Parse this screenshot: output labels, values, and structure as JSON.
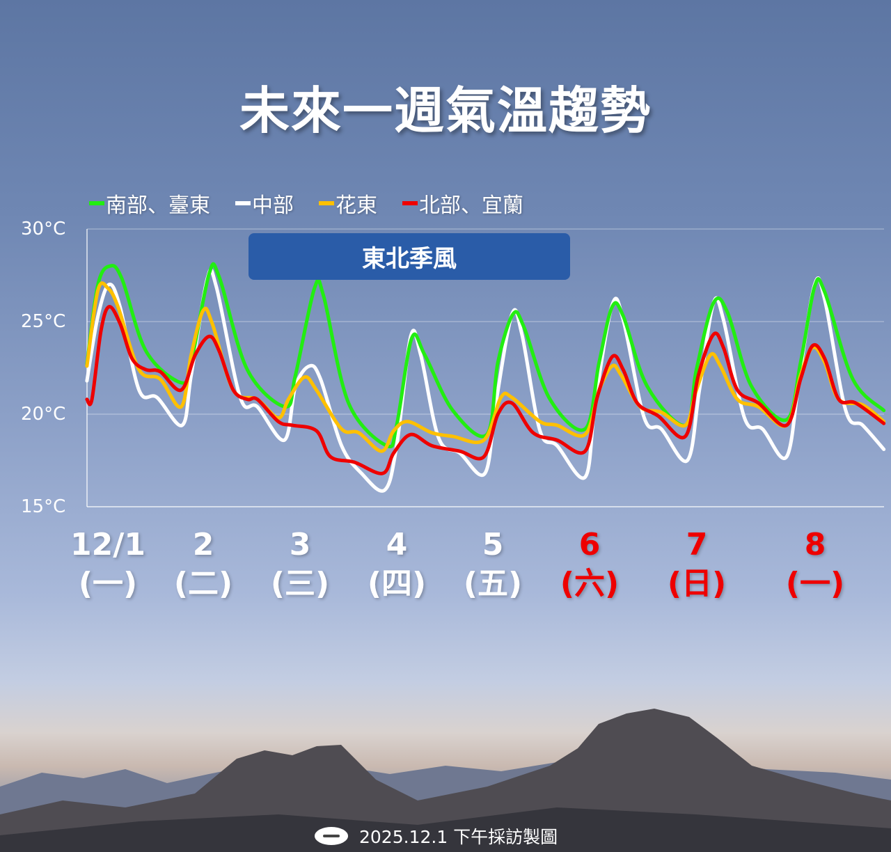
{
  "title": "未來一週氣溫趨勢",
  "annotation": "東北季風",
  "footer": {
    "text": "2025.12.1 下午採訪製圖",
    "logo_icon": "cwa-logo"
  },
  "colors": {
    "south": "#22ee11",
    "central": "#ffffff",
    "hualien": "#ffc000",
    "north": "#ee0000",
    "weekend_label": "#ee0000",
    "annotation_bg": "#2a5ca8"
  },
  "chart_data": {
    "type": "line",
    "title": "未來一週氣溫趨勢",
    "ylim": [
      15,
      30
    ],
    "yticks": [
      {
        "v": 30,
        "label": "30°C"
      },
      {
        "v": 25,
        "label": "25°C"
      },
      {
        "v": 20,
        "label": "20°C"
      },
      {
        "v": 15,
        "label": "15°C"
      }
    ],
    "grid": true,
    "legend_placement": "top",
    "xticks": [
      {
        "date": "12/1",
        "weekday": "(一)",
        "weekend": false
      },
      {
        "date": "2",
        "weekday": "(二)",
        "weekend": false
      },
      {
        "date": "3",
        "weekday": "(三)",
        "weekend": false
      },
      {
        "date": "4",
        "weekday": "(四)",
        "weekend": false
      },
      {
        "date": "5",
        "weekday": "(五)",
        "weekend": false
      },
      {
        "date": "6",
        "weekday": "(六)",
        "weekend": true
      },
      {
        "date": "7",
        "weekday": "(日)",
        "weekend": true
      },
      {
        "date": "8",
        "weekday": "(一)",
        "weekend": true
      }
    ],
    "series": [
      {
        "name": "南部、臺東",
        "color": "#22ee11",
        "points": [
          [
            1.35,
            22.7
          ],
          [
            1.46,
            27.0
          ],
          [
            1.58,
            28.0
          ],
          [
            1.7,
            27.3
          ],
          [
            1.94,
            23.4
          ],
          [
            2.29,
            21.7
          ],
          [
            2.39,
            22.8
          ],
          [
            2.57,
            27.6
          ],
          [
            2.67,
            27.4
          ],
          [
            2.95,
            22.4
          ],
          [
            3.33,
            20.4
          ],
          [
            3.43,
            22.1
          ],
          [
            3.62,
            26.8
          ],
          [
            3.71,
            26.4
          ],
          [
            3.96,
            20.6
          ],
          [
            4.34,
            18.3
          ],
          [
            4.44,
            19.4
          ],
          [
            4.59,
            24.1
          ],
          [
            4.72,
            23.2
          ],
          [
            5.0,
            20.2
          ],
          [
            5.34,
            18.9
          ],
          [
            5.45,
            22.8
          ],
          [
            5.6,
            25.4
          ],
          [
            5.71,
            24.7
          ],
          [
            5.97,
            20.8
          ],
          [
            6.32,
            19.2
          ],
          [
            6.46,
            22.8
          ],
          [
            6.59,
            25.8
          ],
          [
            6.7,
            25.3
          ],
          [
            6.94,
            21.5
          ],
          [
            7.32,
            19.4
          ],
          [
            7.43,
            22.4
          ],
          [
            7.6,
            26.0
          ],
          [
            7.74,
            25.5
          ],
          [
            7.98,
            21.5
          ],
          [
            8.33,
            19.7
          ],
          [
            8.47,
            22.8
          ],
          [
            8.61,
            26.9
          ],
          [
            8.71,
            26.6
          ],
          [
            8.99,
            21.9
          ],
          [
            9.3,
            20.2
          ]
        ]
      },
      {
        "name": "中部",
        "color": "#ffffff",
        "points": [
          [
            1.35,
            21.8
          ],
          [
            1.46,
            25.3
          ],
          [
            1.57,
            27.0
          ],
          [
            1.68,
            25.8
          ],
          [
            1.87,
            21.3
          ],
          [
            2.05,
            20.9
          ],
          [
            2.3,
            19.4
          ],
          [
            2.39,
            22.1
          ],
          [
            2.55,
            27.3
          ],
          [
            2.64,
            26.9
          ],
          [
            2.88,
            20.9
          ],
          [
            3.05,
            20.4
          ],
          [
            3.32,
            18.6
          ],
          [
            3.43,
            21.5
          ],
          [
            3.57,
            22.6
          ],
          [
            3.68,
            21.9
          ],
          [
            3.89,
            18.3
          ],
          [
            4.09,
            16.8
          ],
          [
            4.32,
            15.9
          ],
          [
            4.44,
            18.3
          ],
          [
            4.58,
            24.2
          ],
          [
            4.68,
            23.2
          ],
          [
            4.86,
            18.7
          ],
          [
            5.07,
            17.9
          ],
          [
            5.32,
            16.8
          ],
          [
            5.43,
            20.6
          ],
          [
            5.59,
            25.4
          ],
          [
            5.69,
            24.3
          ],
          [
            5.87,
            19.1
          ],
          [
            6.04,
            18.3
          ],
          [
            6.32,
            16.6
          ],
          [
            6.42,
            20.6
          ],
          [
            6.59,
            25.9
          ],
          [
            6.7,
            25.1
          ],
          [
            6.91,
            19.8
          ],
          [
            7.08,
            19.2
          ],
          [
            7.34,
            17.5
          ],
          [
            7.46,
            21.3
          ],
          [
            7.6,
            26.0
          ],
          [
            7.7,
            25.1
          ],
          [
            7.91,
            19.8
          ],
          [
            8.09,
            19.2
          ],
          [
            8.33,
            17.7
          ],
          [
            8.46,
            22.1
          ],
          [
            8.61,
            27.0
          ],
          [
            8.71,
            26.2
          ],
          [
            8.92,
            20.2
          ],
          [
            9.09,
            19.4
          ],
          [
            9.3,
            18.1
          ]
        ]
      },
      {
        "name": "花東",
        "color": "#ffc000",
        "points": [
          [
            1.35,
            22.6
          ],
          [
            1.46,
            26.7
          ],
          [
            1.56,
            26.8
          ],
          [
            1.66,
            25.8
          ],
          [
            1.87,
            22.4
          ],
          [
            2.08,
            21.9
          ],
          [
            2.29,
            20.4
          ],
          [
            2.39,
            23.2
          ],
          [
            2.51,
            25.6
          ],
          [
            2.6,
            24.9
          ],
          [
            2.81,
            21.3
          ],
          [
            3.05,
            20.8
          ],
          [
            3.26,
            19.8
          ],
          [
            3.36,
            20.8
          ],
          [
            3.52,
            22.0
          ],
          [
            3.64,
            21.3
          ],
          [
            3.89,
            19.2
          ],
          [
            4.06,
            19.0
          ],
          [
            4.29,
            18.0
          ],
          [
            4.41,
            19.1
          ],
          [
            4.55,
            19.6
          ],
          [
            4.79,
            19.0
          ],
          [
            5.0,
            18.8
          ],
          [
            5.31,
            18.6
          ],
          [
            5.48,
            20.9
          ],
          [
            5.59,
            20.9
          ],
          [
            5.87,
            19.6
          ],
          [
            6.04,
            19.4
          ],
          [
            6.32,
            18.9
          ],
          [
            6.46,
            21.3
          ],
          [
            6.59,
            22.6
          ],
          [
            6.68,
            22.1
          ],
          [
            6.87,
            20.4
          ],
          [
            7.08,
            20.1
          ],
          [
            7.32,
            19.4
          ],
          [
            7.43,
            21.3
          ],
          [
            7.57,
            23.2
          ],
          [
            7.67,
            22.6
          ],
          [
            7.84,
            20.8
          ],
          [
            8.05,
            20.4
          ],
          [
            8.33,
            19.4
          ],
          [
            8.47,
            22.1
          ],
          [
            8.59,
            23.6
          ],
          [
            8.71,
            22.8
          ],
          [
            8.85,
            20.8
          ],
          [
            9.09,
            20.5
          ],
          [
            9.3,
            19.6
          ]
        ]
      },
      {
        "name": "北部、宜蘭",
        "color": "#ee0000",
        "points": [
          [
            1.35,
            20.8
          ],
          [
            1.4,
            20.8
          ],
          [
            1.49,
            24.5
          ],
          [
            1.57,
            25.8
          ],
          [
            1.68,
            24.9
          ],
          [
            1.8,
            23.0
          ],
          [
            1.94,
            22.4
          ],
          [
            2.08,
            22.3
          ],
          [
            2.29,
            21.3
          ],
          [
            2.43,
            23.2
          ],
          [
            2.57,
            24.2
          ],
          [
            2.67,
            23.4
          ],
          [
            2.81,
            21.3
          ],
          [
            2.95,
            20.8
          ],
          [
            3.05,
            20.8
          ],
          [
            3.26,
            19.6
          ],
          [
            3.4,
            19.4
          ],
          [
            3.64,
            19.1
          ],
          [
            3.78,
            17.7
          ],
          [
            4.02,
            17.4
          ],
          [
            4.3,
            16.8
          ],
          [
            4.41,
            17.9
          ],
          [
            4.58,
            18.9
          ],
          [
            4.79,
            18.3
          ],
          [
            5.07,
            18.0
          ],
          [
            5.31,
            17.7
          ],
          [
            5.45,
            20.0
          ],
          [
            5.59,
            20.6
          ],
          [
            5.8,
            19.0
          ],
          [
            6.04,
            18.6
          ],
          [
            6.32,
            18.0
          ],
          [
            6.44,
            20.9
          ],
          [
            6.59,
            23.1
          ],
          [
            6.7,
            22.4
          ],
          [
            6.84,
            20.6
          ],
          [
            7.05,
            19.9
          ],
          [
            7.32,
            18.8
          ],
          [
            7.45,
            22.1
          ],
          [
            7.6,
            24.3
          ],
          [
            7.7,
            23.6
          ],
          [
            7.84,
            21.3
          ],
          [
            8.05,
            20.6
          ],
          [
            8.33,
            19.4
          ],
          [
            8.47,
            21.9
          ],
          [
            8.59,
            23.7
          ],
          [
            8.71,
            23.0
          ],
          [
            8.85,
            20.8
          ],
          [
            9.02,
            20.6
          ],
          [
            9.3,
            19.5
          ]
        ]
      }
    ]
  }
}
